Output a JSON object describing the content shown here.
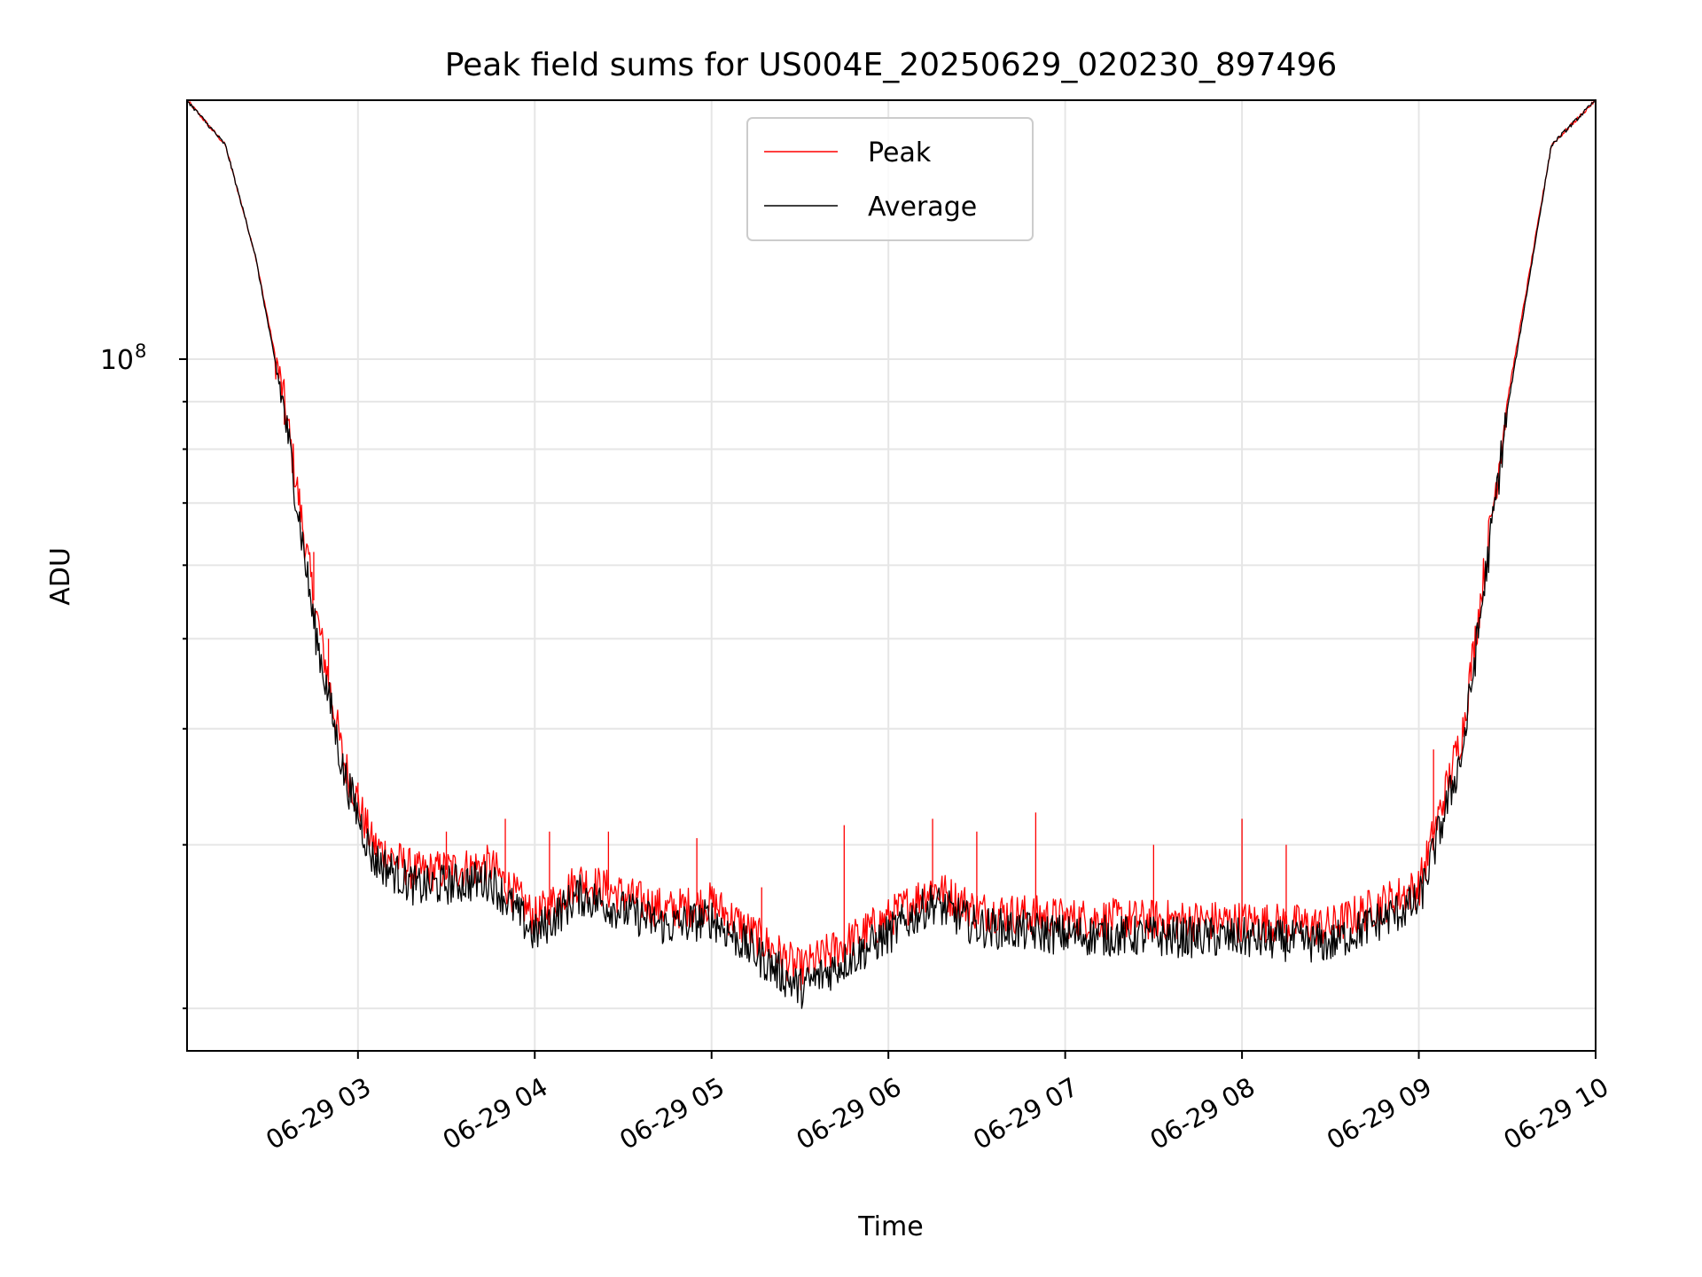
{
  "chart_data": {
    "type": "line",
    "title": "Peak field sums for US004E_20250629_020230_897496",
    "xlabel": "Time",
    "ylabel": "ADU",
    "yscale": "log",
    "x_range": [
      "06-29 02:02",
      "06-29 10:00"
    ],
    "ylim": [
      18000000,
      190000000
    ],
    "x_tick_labels": [
      "06-29 03",
      "06-29 04",
      "06-29 05",
      "06-29 06",
      "06-29 07",
      "06-29 08",
      "06-29 09",
      "06-29 10"
    ],
    "y_tick_labels": [
      {
        "base": "10",
        "exp": "8"
      }
    ],
    "grid": true,
    "legend_position": "upper center",
    "series": [
      {
        "name": "Peak",
        "color": "#ff0000",
        "points": [
          [
            "06-29 02:02",
            190000000
          ],
          [
            "06-29 02:15",
            170000000
          ],
          [
            "06-29 02:25",
            130000000
          ],
          [
            "06-29 02:35",
            90000000
          ],
          [
            "06-29 02:45",
            55000000
          ],
          [
            "06-29 02:55",
            37000000
          ],
          [
            "06-29 03:05",
            30000000
          ],
          [
            "06-29 03:20",
            28000000
          ],
          [
            "06-29 03:45",
            28500000
          ],
          [
            "06-29 04:00",
            25000000
          ],
          [
            "06-29 04:15",
            27500000
          ],
          [
            "06-29 04:45",
            25500000
          ],
          [
            "06-29 05:00",
            26000000
          ],
          [
            "06-29 05:30",
            22000000
          ],
          [
            "06-29 06:00",
            25000000
          ],
          [
            "06-29 06:15",
            27000000
          ],
          [
            "06-29 06:30",
            25500000
          ],
          [
            "06-29 07:00",
            25000000
          ],
          [
            "06-29 08:00",
            24800000
          ],
          [
            "06-29 08:30",
            24500000
          ],
          [
            "06-29 09:00",
            27000000
          ],
          [
            "06-29 09:15",
            40000000
          ],
          [
            "06-29 09:30",
            90000000
          ],
          [
            "06-29 09:45",
            170000000
          ],
          [
            "06-29 10:00",
            190000000
          ]
        ],
        "spikes": [
          [
            "06-29 02:35",
            85000000
          ],
          [
            "06-29 02:45",
            62000000
          ],
          [
            "06-29 02:50",
            50000000
          ],
          [
            "06-29 03:00",
            35000000
          ],
          [
            "06-29 03:30",
            31000000
          ],
          [
            "06-29 03:50",
            32000000
          ],
          [
            "06-29 04:05",
            31000000
          ],
          [
            "06-29 04:25",
            31000000
          ],
          [
            "06-29 04:55",
            30500000
          ],
          [
            "06-29 05:17",
            27000000
          ],
          [
            "06-29 05:45",
            31500000
          ],
          [
            "06-29 06:15",
            32000000
          ],
          [
            "06-29 06:30",
            31000000
          ],
          [
            "06-29 06:50",
            32500000
          ],
          [
            "06-29 07:30",
            30000000
          ],
          [
            "06-29 08:00",
            32000000
          ],
          [
            "06-29 08:15",
            30000000
          ],
          [
            "06-29 09:05",
            38000000
          ]
        ]
      },
      {
        "name": "Average",
        "color": "#000000",
        "points": [
          [
            "06-29 02:02",
            190000000
          ],
          [
            "06-29 02:15",
            170000000
          ],
          [
            "06-29 02:25",
            130000000
          ],
          [
            "06-29 02:35",
            88000000
          ],
          [
            "06-29 02:45",
            52000000
          ],
          [
            "06-29 02:55",
            36000000
          ],
          [
            "06-29 03:05",
            29000000
          ],
          [
            "06-29 03:20",
            27000000
          ],
          [
            "06-29 03:45",
            27500000
          ],
          [
            "06-29 04:00",
            24000000
          ],
          [
            "06-29 04:15",
            26500000
          ],
          [
            "06-29 04:45",
            24500000
          ],
          [
            "06-29 05:00",
            25000000
          ],
          [
            "06-29 05:30",
            21000000
          ],
          [
            "06-29 06:00",
            24000000
          ],
          [
            "06-29 06:15",
            26000000
          ],
          [
            "06-29 06:30",
            24500000
          ],
          [
            "06-29 07:00",
            24000000
          ],
          [
            "06-29 08:00",
            23800000
          ],
          [
            "06-29 08:30",
            23500000
          ],
          [
            "06-29 09:00",
            26000000
          ],
          [
            "06-29 09:15",
            38000000
          ],
          [
            "06-29 09:30",
            88000000
          ],
          [
            "06-29 09:45",
            170000000
          ],
          [
            "06-29 10:00",
            190000000
          ]
        ]
      }
    ]
  }
}
